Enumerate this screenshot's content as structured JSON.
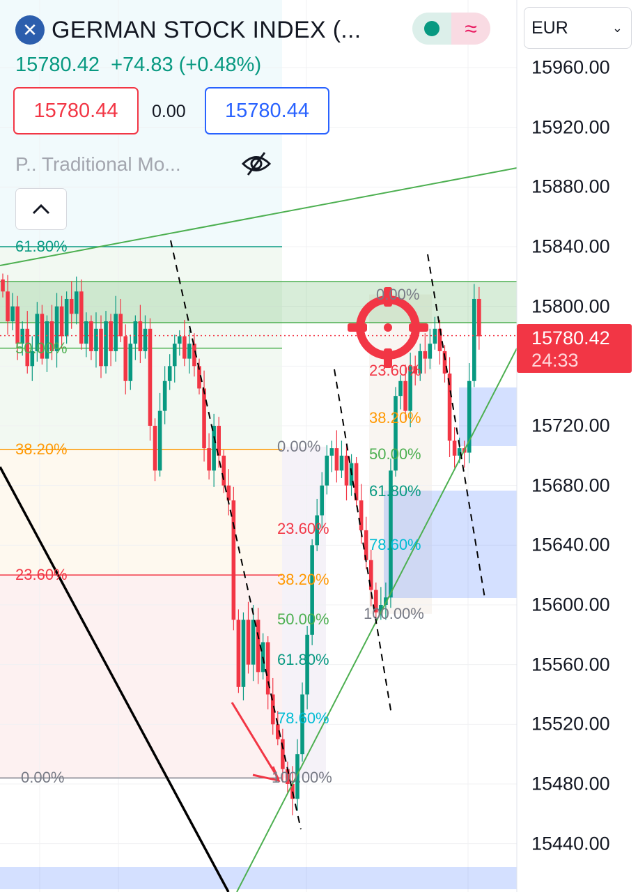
{
  "header": {
    "logo_icon": "x-logo-icon",
    "title": "GERMAN STOCK INDEX (...",
    "quote": "15780.42  +74.83 (+0.48%)",
    "currency": "EUR",
    "bid": "15780.44",
    "spread": "0.00",
    "ask": "15780.44",
    "indicator": "P.. Traditional Mo...",
    "toggle_icons": [
      "market-open-dot-icon",
      "wave-icon"
    ]
  },
  "colors": {
    "up": "#089981",
    "down": "#f23645",
    "fib_green": "#4caf50",
    "fib_orange": "#ff9800",
    "fib_teal": "#089981",
    "fib_cyan": "#00bcd4",
    "fib_gray": "#787b86",
    "zone": "#4caf50",
    "rect": "#2962ff"
  },
  "chart_data": {
    "type": "candlestick",
    "ylim": [
      15420,
      15980
    ],
    "y_ticks": [
      "15960.00",
      "15920.00",
      "15880.00",
      "15840.00",
      "15800.00",
      "15720.00",
      "15680.00",
      "15640.00",
      "15600.00",
      "15560.00",
      "15520.00",
      "15480.00",
      "15440.00"
    ],
    "y_tick_values": [
      15960,
      15920,
      15880,
      15840,
      15800,
      15720,
      15680,
      15640,
      15600,
      15560,
      15520,
      15480,
      15440
    ],
    "last_price": "15780.42",
    "countdown": "24:33",
    "last_value": 15780.42,
    "closes": [
      15810,
      15790,
      15800,
      15775,
      15785,
      15760,
      15770,
      15795,
      15765,
      15790,
      15770,
      15800,
      15780,
      15805,
      15795,
      15810,
      15775,
      15790,
      15770,
      15785,
      15760,
      15790,
      15770,
      15795,
      15780,
      15750,
      15775,
      15790,
      15770,
      15785,
      15720,
      15690,
      15730,
      15750,
      15760,
      15775,
      15780,
      15765,
      15775,
      15760,
      15745,
      15705,
      15690,
      15720,
      15700,
      15680,
      15670,
      15590,
      15545,
      15590,
      15560,
      15590,
      15555,
      15575,
      15540,
      15520,
      15510,
      15490,
      15480,
      15470,
      15500,
      15540,
      15580,
      15640,
      15660,
      15680,
      15700,
      15705,
      15690,
      15700,
      15680,
      15695,
      15670,
      15650,
      15630,
      15610,
      15595,
      15600,
      15605,
      15690,
      15740,
      15750,
      15730,
      15760,
      15755,
      15770,
      15765,
      15775,
      15785,
      15770,
      15755,
      15710,
      15700,
      15705,
      15702,
      15750,
      15805,
      15780
    ],
    "fib_left": [
      {
        "label": "61.80%",
        "price": 15840
      },
      {
        "label": "50.00%",
        "price": 15772
      },
      {
        "label": "38.20%",
        "price": 15704
      },
      {
        "label": "23.60%",
        "price": 15620
      },
      {
        "label": "0.00%",
        "price": 15484
      }
    ],
    "fib_middle": [
      {
        "label": "0.00%",
        "price": 15706
      },
      {
        "label": "23.60%",
        "price": 15651
      },
      {
        "label": "38.20%",
        "price": 15617
      },
      {
        "label": "50.00%",
        "price": 15590
      },
      {
        "label": "61.80%",
        "price": 15563
      },
      {
        "label": "78.60%",
        "price": 15524
      },
      {
        "label": "100.00%",
        "price": 15484
      }
    ],
    "fib_right": [
      {
        "label": "0.00%",
        "price": 15808
      },
      {
        "label": "23.60%",
        "price": 15757
      },
      {
        "label": "38.20%",
        "price": 15725
      },
      {
        "label": "50.00%",
        "price": 15701
      },
      {
        "label": "61.80%",
        "price": 15676
      },
      {
        "label": "78.60%",
        "price": 15640
      },
      {
        "label": "100.00%",
        "price": 15594
      }
    ]
  }
}
